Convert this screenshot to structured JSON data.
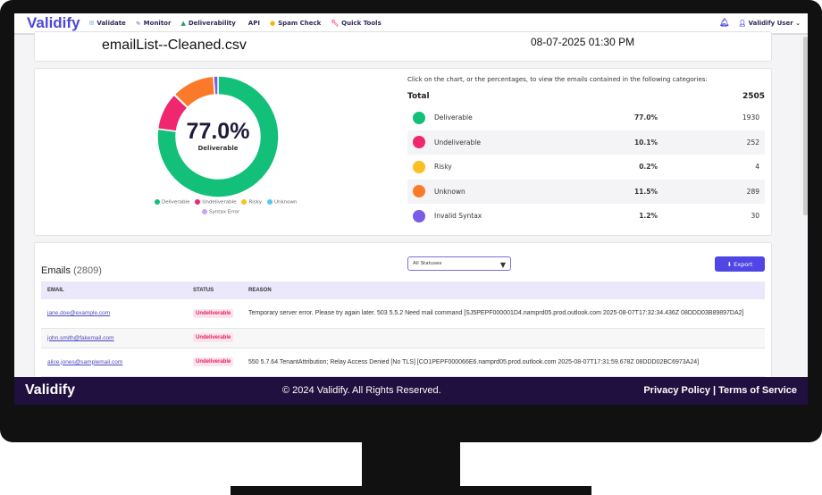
{
  "nav": {
    "logo": "Validify",
    "items": [
      {
        "label": "Validate",
        "icon": "envelope-icon",
        "color": "#5aa9e6"
      },
      {
        "label": "Monitor",
        "icon": "pulse-icon",
        "color": "#7c5ce0"
      },
      {
        "label": "Deliverability",
        "icon": "chart-icon",
        "color": "#1e9e6a"
      },
      {
        "label": "API",
        "icon": "code-icon",
        "color": "#6b5ce0"
      },
      {
        "label": "Spam Check",
        "icon": "spam-icon",
        "color": "#f2b705"
      },
      {
        "label": "Quick Tools",
        "icon": "wrench-icon",
        "color": "#ff4d8d"
      }
    ],
    "user": "Validify User"
  },
  "file": {
    "name": "emailList--Cleaned.csv",
    "date": "08-07-2025 01:30 PM"
  },
  "chart": {
    "center_value": "77.0%",
    "center_label": "Deliverable",
    "legend": [
      {
        "label": "Deliverable",
        "color": "#12c07a"
      },
      {
        "label": "Undeliverable",
        "color": "#f0266e"
      },
      {
        "label": "Risky",
        "color": "#fbbf24"
      },
      {
        "label": "Unknown",
        "color": "#56c6f0"
      },
      {
        "label": "Syntax Error",
        "color": "#c4a6f5"
      }
    ]
  },
  "chart_data": {
    "type": "pie",
    "categories": [
      "Deliverable",
      "Undeliverable",
      "Risky",
      "Unknown",
      "Invalid Syntax"
    ],
    "values": [
      1930,
      252,
      4,
      289,
      30
    ],
    "colors": [
      "#12c07a",
      "#f0266e",
      "#fbbf24",
      "#fb7a2a",
      "#7b5ce6"
    ]
  },
  "summary": {
    "hint": "Click on the chart, or the percentages, to view the emails contained in the following categories:",
    "total_label": "Total",
    "total": "2505",
    "rows": [
      {
        "label": "Deliverable",
        "pct": "77.0%",
        "count": "1930",
        "color": "#12c07a"
      },
      {
        "label": "Undeliverable",
        "pct": "10.1%",
        "count": "252",
        "color": "#f0266e"
      },
      {
        "label": "Risky",
        "pct": "0.2%",
        "count": "4",
        "color": "#fbbf24"
      },
      {
        "label": "Unknown",
        "pct": "11.5%",
        "count": "289",
        "color": "#fb7a2a"
      },
      {
        "label": "Invalid Syntax",
        "pct": "1.2%",
        "count": "30",
        "color": "#7b5ce6"
      }
    ]
  },
  "emails": {
    "title": "Emails",
    "count": "(2809)",
    "filter": "All Statuses",
    "export": "Export",
    "columns": [
      "EMAIL",
      "STATUS",
      "REASON"
    ],
    "rows": [
      {
        "email": "jane.doe@example.com",
        "status": "Undeliverable",
        "reason": "Temporary server error. Please try again later. 503 5.5.2 Need mail command [SJ5PEPF000001D4.namprd05.prod.outlook.com 2025-08-07T17:32:34.436Z 08DDD03B89897DA2]"
      },
      {
        "email": "john.smith@fakemail.com",
        "status": "Undeliverable",
        "reason": ""
      },
      {
        "email": "alice.jones@samplemail.com",
        "status": "Undeliverable",
        "reason": "550 5.7.64 TenantAttribution; Relay Access Denied [No TLS] [CO1PEPF000066E6.namprd05.prod.outlook.com 2025-08-07T17:31:59.678Z 08DDD02BC6973A24]"
      }
    ]
  },
  "footer": {
    "logo": "Validify",
    "copyright": "© 2024 Validify. All Rights Reserved.",
    "privacy": "Privacy Policy",
    "sep": "|",
    "terms": "Terms of Service"
  }
}
